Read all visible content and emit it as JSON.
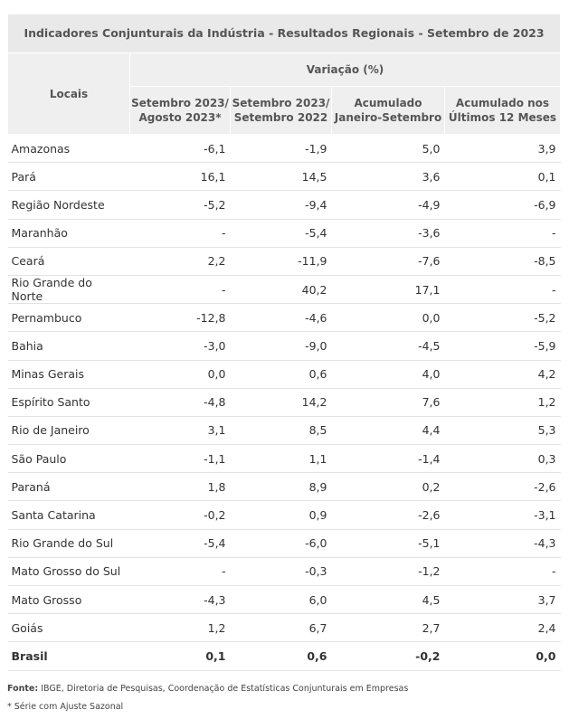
{
  "header": {
    "title": "Indicadores Conjunturais da Indústria  -  Resultados Regionais  -  Setembro de 2023"
  },
  "table": {
    "row_header": "Locais",
    "group_header": "Variação (%)",
    "columns": [
      "Setembro 2023/\nAgosto 2023*",
      "Setembro 2023/\nSetembro 2022",
      "Acumulado\nJaneiro-Setembro",
      "Acumulado nos\nÚltimos 12 Meses"
    ],
    "rows": [
      [
        "Amazonas",
        "-6,1",
        "-1,9",
        "5,0",
        "3,9"
      ],
      [
        "Pará",
        "16,1",
        "14,5",
        "3,6",
        "0,1"
      ],
      [
        "Região Nordeste",
        "-5,2",
        "-9,4",
        "-4,9",
        "-6,9"
      ],
      [
        "Maranhão",
        "-",
        "-5,4",
        "-3,6",
        "-"
      ],
      [
        "Ceará",
        "2,2",
        "-11,9",
        "-7,6",
        "-8,5"
      ],
      [
        "Rio Grande do Norte",
        "-",
        "40,2",
        "17,1",
        "-"
      ],
      [
        "Pernambuco",
        "-12,8",
        "-4,6",
        "0,0",
        "-5,2"
      ],
      [
        "Bahia",
        "-3,0",
        "-9,0",
        "-4,5",
        "-5,9"
      ],
      [
        "Minas Gerais",
        "0,0",
        "0,6",
        "4,0",
        "4,2"
      ],
      [
        "Espírito Santo",
        "-4,8",
        "14,2",
        "7,6",
        "1,2"
      ],
      [
        "Rio de Janeiro",
        "3,1",
        "8,5",
        "4,4",
        "5,3"
      ],
      [
        "São Paulo",
        "-1,1",
        "1,1",
        "-1,4",
        "0,3"
      ],
      [
        "Paraná",
        "1,8",
        "8,9",
        "0,2",
        "-2,6"
      ],
      [
        "Santa Catarina",
        "-0,2",
        "0,9",
        "-2,6",
        "-3,1"
      ],
      [
        "Rio Grande do Sul",
        "-5,4",
        "-6,0",
        "-5,1",
        "-4,3"
      ],
      [
        "Mato Grosso do Sul",
        "-",
        "-0,3",
        "-1,2",
        "-"
      ],
      [
        "Mato Grosso",
        "-4,3",
        "6,0",
        "4,5",
        "3,7"
      ],
      [
        "Goiás",
        "1,2",
        "6,7",
        "2,7",
        "2,4"
      ],
      [
        "Brasil",
        "0,1",
        "0,6",
        "-0,2",
        "0,0"
      ]
    ]
  },
  "footer": {
    "source_label": "Fonte:",
    "source": "IBGE, Diretoria de Pesquisas, Coordenação de Estatísticas Conjunturais em Empresas",
    "note": "* Série com Ajuste Sazonal"
  }
}
